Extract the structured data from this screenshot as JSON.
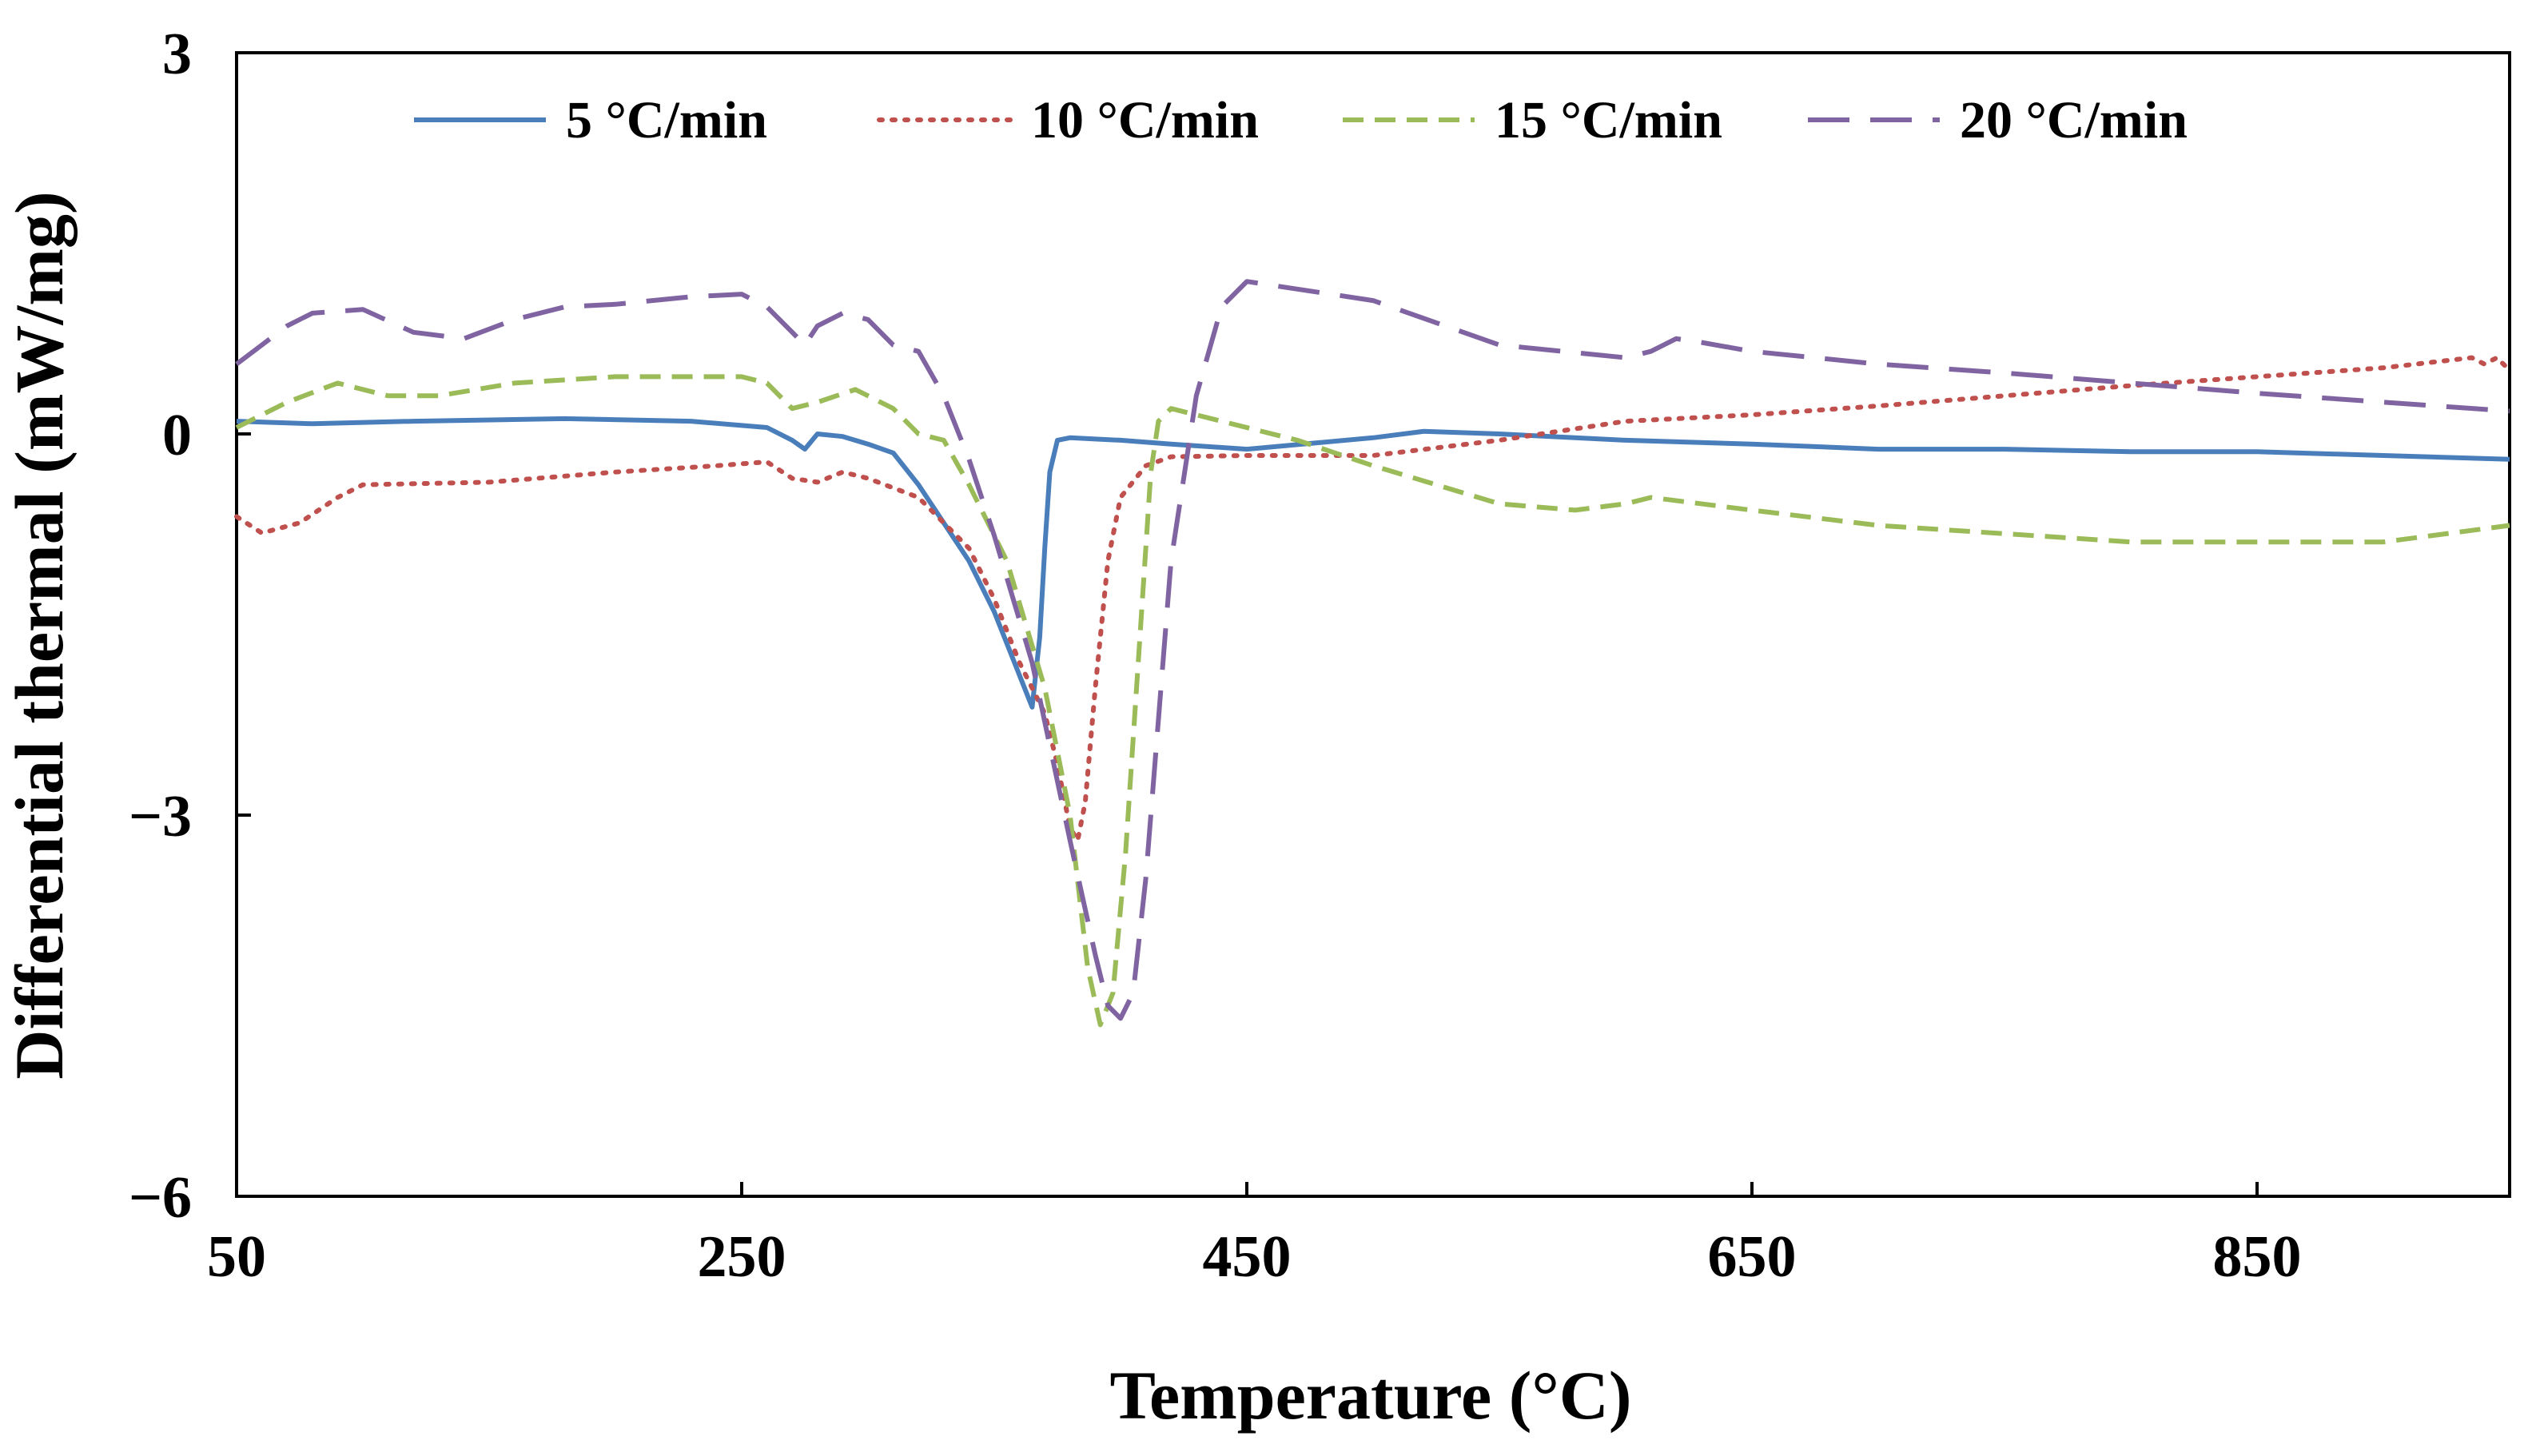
{
  "chart_data": {
    "type": "line",
    "title": "",
    "xlabel": "Temperature (°C)",
    "ylabel": "Differential thermal (mW/mg)",
    "xlim": [
      50,
      950
    ],
    "ylim": [
      -6,
      3
    ],
    "xticks": [
      50,
      250,
      450,
      650,
      850
    ],
    "xtick_labels": [
      "50",
      "250",
      "450",
      "650",
      "850"
    ],
    "yticks": [
      3,
      0,
      -3,
      -6
    ],
    "ytick_labels": [
      "3",
      "0",
      "−3",
      "−6"
    ],
    "grid": false,
    "legend_position": "top",
    "series": [
      {
        "name": "5 °C/min",
        "color": "#4a7ebb",
        "dash": "solid",
        "x": [
          50,
          80,
          120,
          180,
          230,
          260,
          270,
          275,
          280,
          290,
          300,
          310,
          320,
          330,
          340,
          350,
          360,
          365,
          368,
          370,
          372,
          375,
          380,
          390,
          400,
          420,
          450,
          500,
          520,
          550,
          600,
          650,
          700,
          750,
          800,
          850,
          900,
          950
        ],
        "y": [
          0.1,
          0.08,
          0.1,
          0.12,
          0.1,
          0.05,
          -0.05,
          -0.12,
          0.0,
          -0.02,
          -0.08,
          -0.15,
          -0.4,
          -0.7,
          -1.0,
          -1.4,
          -1.9,
          -2.15,
          -1.6,
          -0.9,
          -0.3,
          -0.05,
          -0.03,
          -0.04,
          -0.05,
          -0.08,
          -0.12,
          -0.03,
          0.02,
          0.0,
          -0.05,
          -0.08,
          -0.12,
          -0.12,
          -0.14,
          -0.14,
          -0.17,
          -0.2
        ]
      },
      {
        "name": "10 °C/min",
        "color": "#c0504d",
        "dash": "dotted",
        "x": [
          50,
          60,
          75,
          90,
          100,
          150,
          200,
          240,
          260,
          270,
          280,
          290,
          300,
          320,
          340,
          350,
          360,
          370,
          375,
          380,
          383,
          386,
          390,
          395,
          400,
          410,
          420,
          450,
          500,
          550,
          600,
          650,
          700,
          750,
          800,
          850,
          900,
          935,
          940,
          945,
          950
        ],
        "y": [
          -0.65,
          -0.78,
          -0.7,
          -0.5,
          -0.4,
          -0.38,
          -0.3,
          -0.25,
          -0.22,
          -0.35,
          -0.38,
          -0.3,
          -0.35,
          -0.5,
          -0.9,
          -1.3,
          -1.8,
          -2.2,
          -2.6,
          -3.1,
          -3.2,
          -2.9,
          -2.0,
          -1.0,
          -0.5,
          -0.25,
          -0.18,
          -0.17,
          -0.17,
          -0.05,
          0.1,
          0.15,
          0.22,
          0.3,
          0.38,
          0.45,
          0.52,
          0.6,
          0.55,
          0.6,
          0.5
        ]
      },
      {
        "name": "15 °C/min",
        "color": "#9bbb59",
        "dash": "dashed",
        "x": [
          50,
          70,
          90,
          110,
          130,
          160,
          200,
          250,
          260,
          270,
          280,
          295,
          310,
          320,
          330,
          340,
          355,
          370,
          380,
          387,
          392,
          397,
          402,
          408,
          412,
          415,
          420,
          440,
          470,
          500,
          550,
          580,
          600,
          610,
          650,
          700,
          800,
          900,
          950
        ],
        "y": [
          0.05,
          0.25,
          0.4,
          0.3,
          0.3,
          0.4,
          0.45,
          0.45,
          0.4,
          0.2,
          0.25,
          0.35,
          0.2,
          0.0,
          -0.05,
          -0.4,
          -1.0,
          -2.0,
          -3.0,
          -4.2,
          -4.65,
          -4.4,
          -3.3,
          -1.5,
          -0.3,
          0.1,
          0.2,
          0.1,
          -0.05,
          -0.25,
          -0.55,
          -0.6,
          -0.55,
          -0.5,
          -0.6,
          -0.72,
          -0.85,
          -0.85,
          -0.72
        ]
      },
      {
        "name": "20 °C/min",
        "color": "#8064a2",
        "dash": "longdash",
        "x": [
          50,
          70,
          80,
          100,
          120,
          140,
          160,
          180,
          200,
          230,
          250,
          260,
          270,
          275,
          280,
          290,
          300,
          310,
          320,
          330,
          340,
          350,
          365,
          380,
          390,
          395,
          400,
          405,
          410,
          420,
          430,
          440,
          450,
          500,
          550,
          600,
          610,
          620,
          630,
          650,
          700,
          750,
          800,
          850,
          900,
          950
        ],
        "y": [
          0.55,
          0.85,
          0.95,
          0.98,
          0.8,
          0.75,
          0.9,
          1.0,
          1.02,
          1.08,
          1.1,
          1.0,
          0.8,
          0.7,
          0.85,
          0.95,
          0.9,
          0.7,
          0.65,
          0.3,
          -0.2,
          -0.8,
          -1.8,
          -3.2,
          -4.1,
          -4.5,
          -4.6,
          -4.4,
          -3.5,
          -1.0,
          0.3,
          1.0,
          1.2,
          1.05,
          0.7,
          0.6,
          0.65,
          0.75,
          0.72,
          0.65,
          0.55,
          0.48,
          0.4,
          0.32,
          0.25,
          0.18
        ]
      }
    ]
  }
}
